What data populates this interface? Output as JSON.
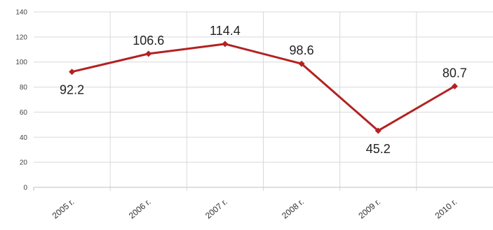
{
  "chart_data": {
    "type": "line",
    "categories": [
      "2005 г.",
      "2006 г.",
      "2007 г.",
      "2008 г.",
      "2009 г.",
      "2010 г."
    ],
    "series": [
      {
        "values": [
          92.2,
          106.6,
          114.4,
          98.6,
          45.2,
          80.7
        ],
        "labels": [
          "92.2",
          "106.6",
          "114.4",
          "98.6",
          "45.2",
          "80.7"
        ]
      }
    ],
    "yticks": [
      "0",
      "20",
      "40",
      "60",
      "80",
      "100",
      "120",
      "140"
    ],
    "ylim": [
      0,
      140
    ],
    "grid": true,
    "legend": "none",
    "colors": {
      "series": "#B22222",
      "grid": "#D9D9D9",
      "axis": "#BFBFBF"
    }
  }
}
